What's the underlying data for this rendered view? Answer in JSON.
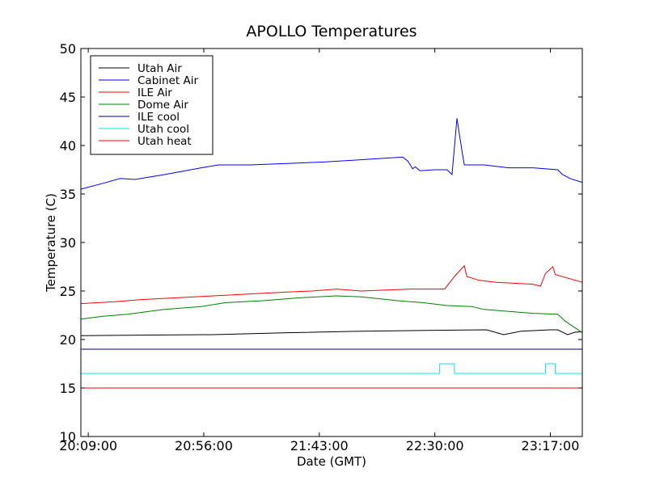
{
  "chart_data": {
    "type": "line",
    "title": "APOLLO Temperatures",
    "xlabel": "Date (GMT)",
    "ylabel": "Temperature (C)",
    "ylim": [
      10,
      50
    ],
    "yticks": [
      10,
      15,
      20,
      25,
      30,
      35,
      40,
      45,
      50
    ],
    "xlim_minutes": [
      1206,
      1410
    ],
    "xticks": [
      {
        "label": "20:09:00",
        "minutes": 1209
      },
      {
        "label": "20:56:00",
        "minutes": 1256
      },
      {
        "label": "21:43:00",
        "minutes": 1303
      },
      {
        "label": "22:30:00",
        "minutes": 1350
      },
      {
        "label": "23:17:00",
        "minutes": 1397
      }
    ],
    "grid": false,
    "legend_position": "top-left",
    "series": [
      {
        "name": "Utah Air",
        "color": "#000000",
        "points": [
          [
            1206,
            20.4
          ],
          [
            1230,
            20.45
          ],
          [
            1260,
            20.5
          ],
          [
            1290,
            20.7
          ],
          [
            1320,
            20.85
          ],
          [
            1350,
            20.95
          ],
          [
            1371,
            21.0
          ],
          [
            1378,
            20.5
          ],
          [
            1385,
            20.85
          ],
          [
            1397,
            21.0
          ],
          [
            1400,
            21.0
          ],
          [
            1404,
            20.5
          ],
          [
            1407,
            20.75
          ],
          [
            1410,
            20.8
          ]
        ]
      },
      {
        "name": "Cabinet Air",
        "color": "#0000ff",
        "points": [
          [
            1206,
            35.5
          ],
          [
            1215,
            36.1
          ],
          [
            1222,
            36.6
          ],
          [
            1228,
            36.5
          ],
          [
            1240,
            37.0
          ],
          [
            1255,
            37.7
          ],
          [
            1262,
            38.0
          ],
          [
            1275,
            38.0
          ],
          [
            1290,
            38.15
          ],
          [
            1305,
            38.3
          ],
          [
            1318,
            38.5
          ],
          [
            1330,
            38.7
          ],
          [
            1337,
            38.8
          ],
          [
            1339,
            38.4
          ],
          [
            1341,
            37.6
          ],
          [
            1342,
            37.8
          ],
          [
            1344,
            37.4
          ],
          [
            1350,
            37.5
          ],
          [
            1355,
            37.5
          ],
          [
            1357,
            37.0
          ],
          [
            1359,
            42.8
          ],
          [
            1361,
            39.5
          ],
          [
            1362,
            38.0
          ],
          [
            1370,
            38.0
          ],
          [
            1380,
            37.7
          ],
          [
            1390,
            37.7
          ],
          [
            1400,
            37.5
          ],
          [
            1402,
            37.0
          ],
          [
            1405,
            36.6
          ],
          [
            1410,
            36.2
          ]
        ]
      },
      {
        "name": "ILE Air",
        "color": "#ff0000",
        "points": [
          [
            1206,
            23.7
          ],
          [
            1220,
            23.9
          ],
          [
            1230,
            24.1
          ],
          [
            1245,
            24.3
          ],
          [
            1260,
            24.5
          ],
          [
            1275,
            24.7
          ],
          [
            1290,
            24.9
          ],
          [
            1300,
            25.0
          ],
          [
            1310,
            25.2
          ],
          [
            1320,
            25.0
          ],
          [
            1340,
            25.2
          ],
          [
            1354,
            25.2
          ],
          [
            1358,
            26.5
          ],
          [
            1362,
            27.6
          ],
          [
            1363,
            26.5
          ],
          [
            1368,
            26.1
          ],
          [
            1375,
            25.9
          ],
          [
            1390,
            25.7
          ],
          [
            1393,
            25.5
          ],
          [
            1395,
            26.8
          ],
          [
            1398,
            27.5
          ],
          [
            1399,
            26.7
          ],
          [
            1410,
            25.9
          ]
        ]
      },
      {
        "name": "Dome Air",
        "color": "#008000",
        "points": [
          [
            1206,
            22.1
          ],
          [
            1215,
            22.4
          ],
          [
            1225,
            22.6
          ],
          [
            1240,
            23.1
          ],
          [
            1255,
            23.4
          ],
          [
            1265,
            23.8
          ],
          [
            1280,
            24.0
          ],
          [
            1295,
            24.3
          ],
          [
            1310,
            24.5
          ],
          [
            1320,
            24.4
          ],
          [
            1335,
            24.0
          ],
          [
            1345,
            23.8
          ],
          [
            1355,
            23.5
          ],
          [
            1365,
            23.4
          ],
          [
            1370,
            23.1
          ],
          [
            1380,
            22.9
          ],
          [
            1390,
            22.7
          ],
          [
            1400,
            22.6
          ],
          [
            1403,
            21.9
          ],
          [
            1410,
            20.7
          ]
        ]
      },
      {
        "name": "ILE cool",
        "color": "#000080",
        "points": [
          [
            1206,
            19.0
          ],
          [
            1410,
            19.0
          ]
        ]
      },
      {
        "name": "Utah cool",
        "color": "#00e5e5",
        "points": [
          [
            1206,
            16.5
          ],
          [
            1352,
            16.5
          ],
          [
            1352,
            17.5
          ],
          [
            1358,
            17.5
          ],
          [
            1358,
            16.5
          ],
          [
            1395,
            16.5
          ],
          [
            1395,
            17.5
          ],
          [
            1399,
            17.5
          ],
          [
            1399,
            16.5
          ],
          [
            1410,
            16.5
          ]
        ]
      },
      {
        "name": "Utah heat",
        "color": "#ff0000",
        "points": [
          [
            1206,
            15.0
          ],
          [
            1410,
            15.0
          ]
        ]
      }
    ]
  }
}
